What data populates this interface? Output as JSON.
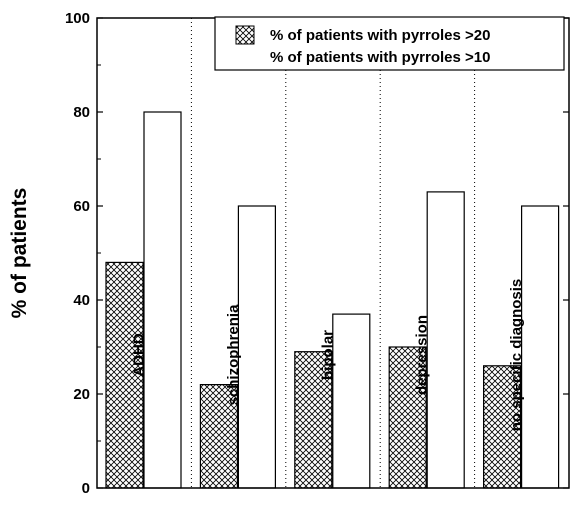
{
  "chart_data": {
    "type": "bar",
    "categories": [
      "ADHD",
      "schizophrenia",
      "bipolar",
      "depression",
      "no specific diagnosis"
    ],
    "series": [
      {
        "name": "% of patients with pyrroles >20",
        "values": [
          48,
          22,
          29,
          30,
          26
        ],
        "pattern": "crosshatch"
      },
      {
        "name": "% of patients with pyrroles >10",
        "values": [
          80,
          60,
          37,
          63,
          60
        ],
        "pattern": "white"
      }
    ],
    "title": "",
    "xlabel": "",
    "ylabel": "% of patients",
    "ylim": [
      0,
      100
    ],
    "yticks": [
      0,
      20,
      40,
      60,
      80,
      100
    ],
    "grid": "dotted-vertical",
    "legend_position": "top-right",
    "colors": {
      "fill": "#ffffff",
      "stroke": "#000000",
      "hatch": "#000000"
    }
  }
}
